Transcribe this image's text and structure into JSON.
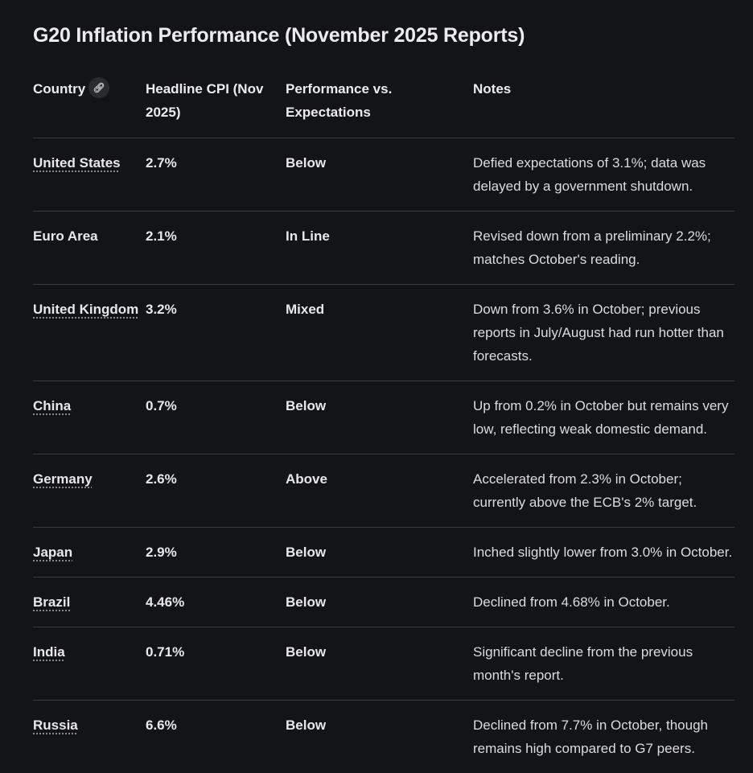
{
  "title": "G20 Inflation Performance (November 2025 Reports)",
  "headers": {
    "country": "Country",
    "cpi": "Headline CPI (Nov 2025)",
    "performance": "Performance vs. Expectations",
    "notes": "Notes"
  },
  "rows": [
    {
      "country": "United States",
      "cpi": "2.7%",
      "performance": "Below",
      "notes": "Defied expectations of 3.1%; data was delayed by a government shutdown."
    },
    {
      "country": "Euro Area",
      "cpi": "2.1%",
      "performance": "In Line",
      "notes": "Revised down from a preliminary 2.2%; matches October's reading."
    },
    {
      "country": "United Kingdom",
      "cpi": "3.2%",
      "performance": "Mixed",
      "notes": "Down from 3.6% in October; previous reports in July/August had run hotter than forecasts."
    },
    {
      "country": "China",
      "cpi": "0.7%",
      "performance": "Below",
      "notes": "Up from 0.2% in October but remains very low, reflecting weak domestic demand."
    },
    {
      "country": "Germany",
      "cpi": "2.6%",
      "performance": "Above",
      "notes": "Accelerated from 2.3% in October; currently above the ECB's 2% target."
    },
    {
      "country": "Japan",
      "cpi": "2.9%",
      "performance": "Below",
      "notes": "Inched slightly lower from 3.0% in October."
    },
    {
      "country": "Brazil",
      "cpi": "4.46%",
      "performance": "Below",
      "notes": "Declined from 4.68% in October."
    },
    {
      "country": "India",
      "cpi": "0.71%",
      "performance": "Below",
      "notes": "Significant decline from the previous month's report."
    },
    {
      "country": "Russia",
      "cpi": "6.6%",
      "performance": "Below",
      "notes": "Declined from 7.7% in October, though remains high compared to G7 peers."
    }
  ]
}
